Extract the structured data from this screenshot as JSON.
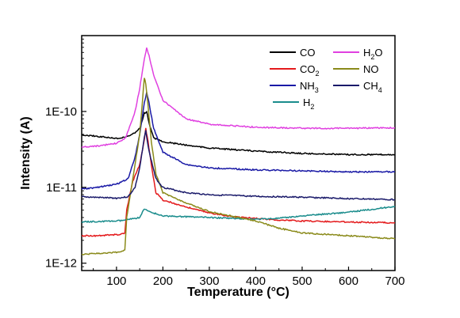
{
  "chart_data": {
    "type": "line",
    "title": "",
    "xlabel": "Temperature (°C)",
    "ylabel": "Intensity (A)",
    "xlim": [
      25,
      700
    ],
    "ylim": [
      8e-13,
      1e-09
    ],
    "yscale": "log",
    "grid": false,
    "legend_position": "top-right",
    "x_ticks": [
      100,
      200,
      300,
      400,
      500,
      600,
      700
    ],
    "y_ticks": [
      {
        "value": 1e-12,
        "label": "1E-12"
      },
      {
        "value": 1e-11,
        "label": "1E-11"
      },
      {
        "value": 1e-10,
        "label": "1E-10"
      }
    ],
    "series": [
      {
        "name": "CO",
        "color": "#000000",
        "points": [
          [
            25,
            4.9e-11
          ],
          [
            60,
            4.7e-11
          ],
          [
            100,
            4.4e-11
          ],
          [
            120,
            4.6e-11
          ],
          [
            140,
            5.2e-11
          ],
          [
            150,
            6e-11
          ],
          [
            160,
            9.5e-11
          ],
          [
            165,
            1e-10
          ],
          [
            170,
            7e-11
          ],
          [
            180,
            4.5e-11
          ],
          [
            200,
            4e-11
          ],
          [
            250,
            3.6e-11
          ],
          [
            300,
            3.3e-11
          ],
          [
            400,
            3e-11
          ],
          [
            500,
            2.8e-11
          ],
          [
            600,
            2.7e-11
          ],
          [
            700,
            2.7e-11
          ]
        ]
      },
      {
        "name": "CO2",
        "label": "CO",
        "label_sub": "2",
        "color": "#e41a1c",
        "points": [
          [
            25,
            2.3e-12
          ],
          [
            60,
            2.3e-12
          ],
          [
            110,
            2.4e-12
          ],
          [
            118,
            2.5e-12
          ],
          [
            122,
            5e-12
          ],
          [
            135,
            1.2e-11
          ],
          [
            150,
            2e-11
          ],
          [
            160,
            4.2e-11
          ],
          [
            163,
            6e-11
          ],
          [
            168,
            4e-11
          ],
          [
            175,
            2e-11
          ],
          [
            185,
            8.5e-12
          ],
          [
            200,
            6.8e-12
          ],
          [
            250,
            5.5e-12
          ],
          [
            300,
            4.6e-12
          ],
          [
            350,
            4.1e-12
          ],
          [
            400,
            3.9e-12
          ],
          [
            450,
            3.7e-12
          ],
          [
            500,
            3.6e-12
          ],
          [
            600,
            3.5e-12
          ],
          [
            700,
            3.4e-12
          ]
        ]
      },
      {
        "name": "NH3",
        "label": "NH",
        "label_sub": "3",
        "color": "#1a1aa6",
        "points": [
          [
            25,
            9.5e-12
          ],
          [
            60,
            1e-11
          ],
          [
            100,
            1.1e-11
          ],
          [
            125,
            1.3e-11
          ],
          [
            140,
            2.5e-11
          ],
          [
            150,
            5e-11
          ],
          [
            160,
            1.3e-10
          ],
          [
            165,
            1.8e-10
          ],
          [
            170,
            1.3e-10
          ],
          [
            180,
            6e-11
          ],
          [
            200,
            2.9e-11
          ],
          [
            250,
            2e-11
          ],
          [
            300,
            1.8e-11
          ],
          [
            400,
            1.7e-11
          ],
          [
            500,
            1.65e-11
          ],
          [
            600,
            1.6e-11
          ],
          [
            700,
            1.6e-11
          ]
        ]
      },
      {
        "name": "H2",
        "label": "H",
        "label_sub": "2",
        "color": "#1a8c8c",
        "points": [
          [
            25,
            3.5e-12
          ],
          [
            100,
            3.6e-12
          ],
          [
            120,
            3.7e-12
          ],
          [
            150,
            4e-12
          ],
          [
            160,
            5.2e-12
          ],
          [
            170,
            4.8e-12
          ],
          [
            200,
            4.2e-12
          ],
          [
            300,
            4e-12
          ],
          [
            400,
            3.8e-12
          ],
          [
            450,
            3.9e-12
          ],
          [
            500,
            4.2e-12
          ],
          [
            600,
            4.7e-12
          ],
          [
            700,
            5.6e-12
          ]
        ]
      },
      {
        "name": "H2O",
        "label": "H",
        "label_sub": "2",
        "label_post": "O",
        "color": "#e040e0",
        "points": [
          [
            25,
            3.4e-11
          ],
          [
            60,
            3.5e-11
          ],
          [
            100,
            3.8e-11
          ],
          [
            120,
            4.5e-11
          ],
          [
            140,
            1e-10
          ],
          [
            150,
            2e-10
          ],
          [
            160,
            5e-10
          ],
          [
            165,
            6.8e-10
          ],
          [
            170,
            5.5e-10
          ],
          [
            180,
            3e-10
          ],
          [
            200,
            1.4e-10
          ],
          [
            250,
            8e-11
          ],
          [
            300,
            6.8e-11
          ],
          [
            400,
            6.2e-11
          ],
          [
            500,
            6e-11
          ],
          [
            600,
            6e-11
          ],
          [
            700,
            6.1e-11
          ]
        ]
      },
      {
        "name": "NO",
        "color": "#8a8a1a",
        "points": [
          [
            25,
            1.3e-12
          ],
          [
            60,
            1.35e-12
          ],
          [
            110,
            1.4e-12
          ],
          [
            118,
            1.5e-12
          ],
          [
            122,
            4e-12
          ],
          [
            135,
            1.3e-11
          ],
          [
            150,
            5e-11
          ],
          [
            160,
            2.8e-10
          ],
          [
            163,
            2.3e-10
          ],
          [
            168,
            1.2e-10
          ],
          [
            175,
            4e-11
          ],
          [
            185,
            1.5e-11
          ],
          [
            200,
            8.5e-12
          ],
          [
            250,
            6.2e-12
          ],
          [
            300,
            4.8e-12
          ],
          [
            400,
            3.6e-12
          ],
          [
            450,
            2.9e-12
          ],
          [
            500,
            2.5e-12
          ],
          [
            600,
            2.3e-12
          ],
          [
            700,
            2.1e-12
          ]
        ]
      },
      {
        "name": "CH4",
        "label": "CH",
        "label_sub": "4",
        "color": "#1a1a6a",
        "points": [
          [
            25,
            7.5e-12
          ],
          [
            100,
            7.2e-12
          ],
          [
            125,
            7.5e-12
          ],
          [
            140,
            1e-11
          ],
          [
            150,
            1.8e-11
          ],
          [
            160,
            4.5e-11
          ],
          [
            163,
            5.6e-11
          ],
          [
            170,
            3e-11
          ],
          [
            185,
            1.3e-11
          ],
          [
            200,
            1e-11
          ],
          [
            250,
            8.5e-12
          ],
          [
            300,
            8e-12
          ],
          [
            400,
            7.6e-12
          ],
          [
            500,
            7.4e-12
          ],
          [
            600,
            7.1e-12
          ],
          [
            700,
            6.9e-12
          ]
        ]
      }
    ]
  }
}
